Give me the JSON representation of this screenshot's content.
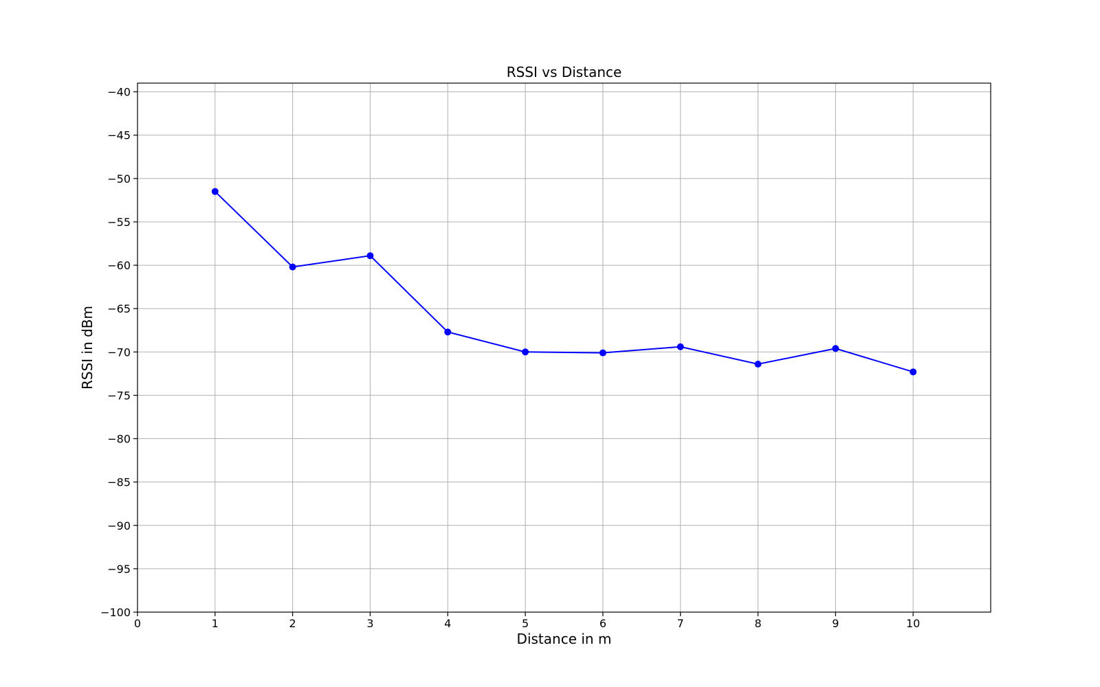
{
  "chart_data": {
    "type": "line",
    "title": "RSSI vs Distance",
    "xlabel": "Distance in m",
    "ylabel": "RSSI in dBm",
    "xlim": [
      0,
      11
    ],
    "ylim": [
      -100,
      -39
    ],
    "xticks": [
      0,
      1,
      2,
      3,
      4,
      5,
      6,
      7,
      8,
      9,
      10
    ],
    "yticks": [
      -100,
      -95,
      -90,
      -85,
      -80,
      -75,
      -70,
      -65,
      -60,
      -55,
      -50,
      -45,
      -40
    ],
    "ytick_labels": [
      "−100",
      "−95",
      "−90",
      "−85",
      "−80",
      "−75",
      "−70",
      "−65",
      "−60",
      "−55",
      "−50",
      "−45",
      "−40"
    ],
    "grid": true,
    "series": [
      {
        "color": "#0000ff",
        "marker": "circle",
        "x": [
          1,
          2,
          3,
          4,
          5,
          6,
          7,
          8,
          9,
          10
        ],
        "y": [
          -51.5,
          -60.2,
          -58.9,
          -67.7,
          -70.0,
          -70.1,
          -69.4,
          -71.4,
          -69.6,
          -72.3
        ]
      }
    ]
  }
}
